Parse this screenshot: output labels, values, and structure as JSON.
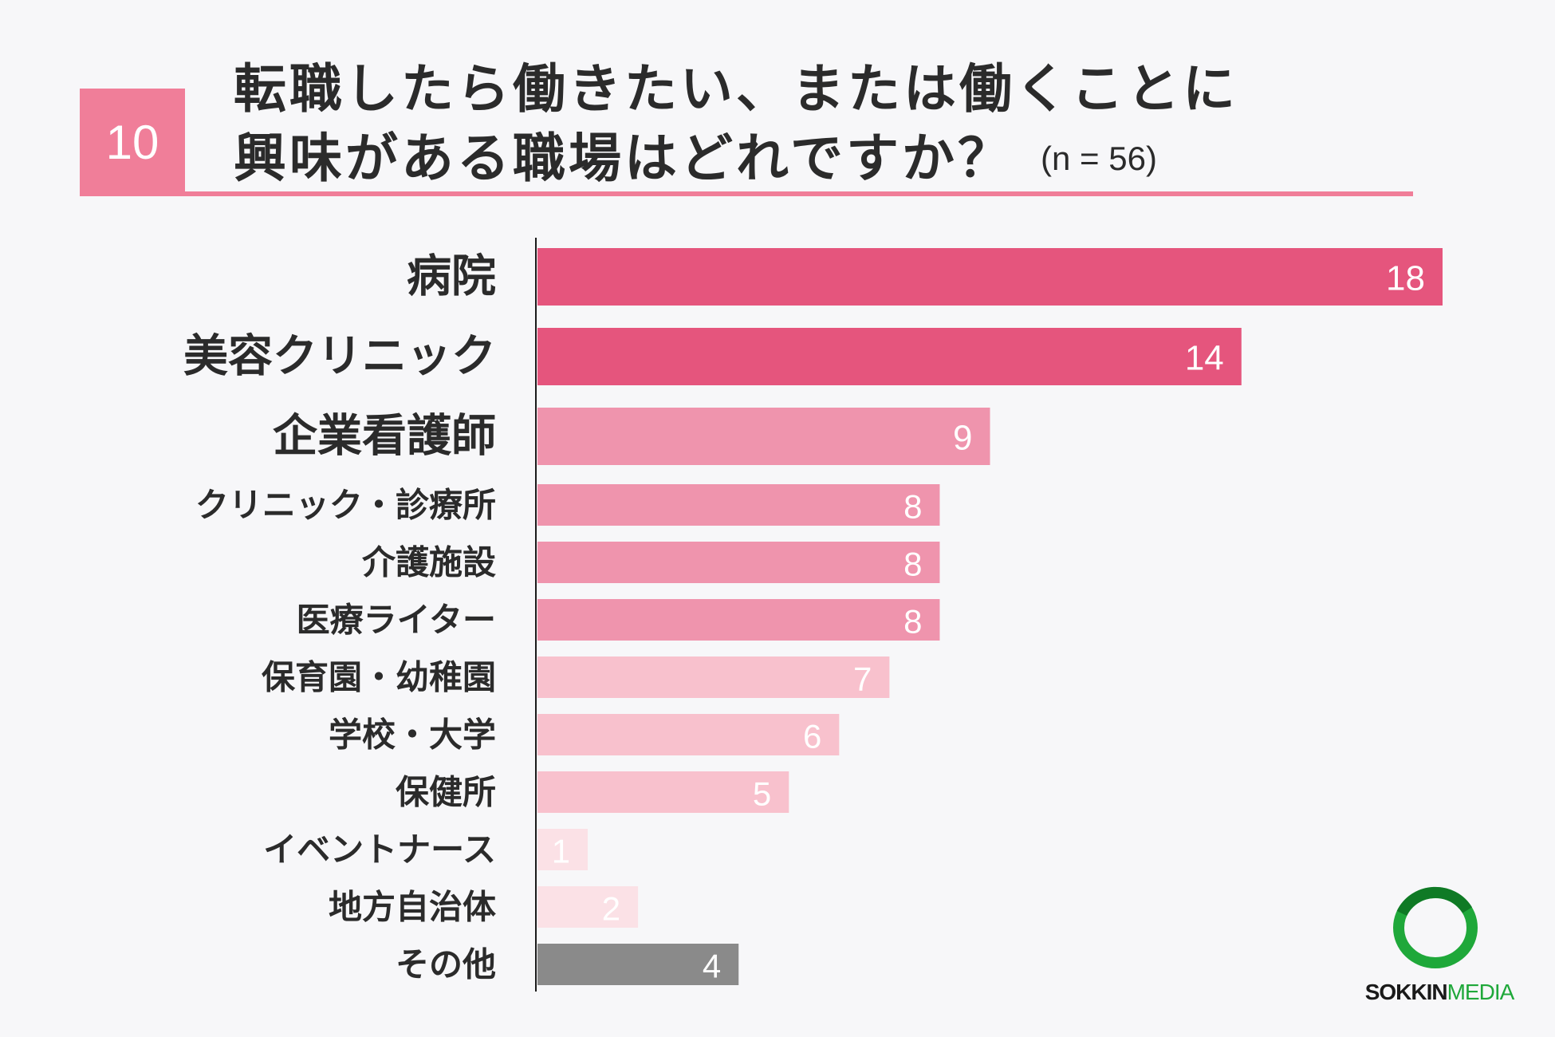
{
  "question": {
    "number": "10",
    "title_line1": "転職したら働きたい、または働くことに",
    "title_line2": "興味がある職場はどれですか？",
    "sample": "(n = 56)"
  },
  "chart_data": {
    "type": "bar",
    "orientation": "horizontal",
    "categories": [
      "病院",
      "美容クリニック",
      "企業看護師",
      "クリニック・診療所",
      "介護施設",
      "医療ライター",
      "保育園・幼稚園",
      "学校・大学",
      "保健所",
      "イベントナース",
      "地方自治体",
      "その他"
    ],
    "values": [
      18,
      14,
      9,
      8,
      8,
      8,
      7,
      6,
      5,
      1,
      2,
      4
    ],
    "xlim": [
      0,
      18
    ],
    "grid": false,
    "colors": [
      "#e5557d",
      "#e5557d",
      "#ef94ad",
      "#ef94ad",
      "#ef94ad",
      "#ef94ad",
      "#f8c1cd",
      "#f8c1cd",
      "#f8c1cd",
      "#fbe1e6",
      "#fbe1e6",
      "#8a8a8a"
    ]
  },
  "brand": {
    "part1": "SOKKIN",
    "part2": "MEDIA",
    "logo_icon": "green-ring-logo"
  }
}
